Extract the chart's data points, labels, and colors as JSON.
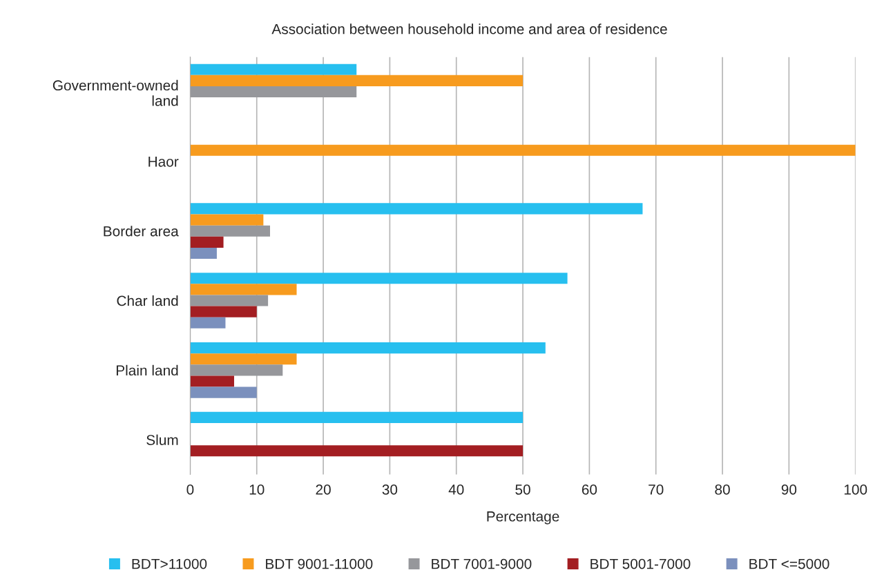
{
  "chart_data": {
    "type": "bar",
    "orientation": "horizontal",
    "title": "Association between household income and area of residence",
    "xlabel": "Percentage",
    "categories": [
      "Government-owned\nland",
      "Haor",
      "Border area",
      "Char land",
      "Plain land",
      "Slum"
    ],
    "series": [
      {
        "name": "BDT>11000",
        "color": "#27bfef",
        "values": [
          25,
          0,
          68,
          56.7,
          53.4,
          50
        ]
      },
      {
        "name": "BDT 9001-11000",
        "color": "#f79b1e",
        "values": [
          50,
          100,
          11,
          16,
          16,
          0
        ]
      },
      {
        "name": "BDT 7001-9000",
        "color": "#96979b",
        "values": [
          25,
          0,
          12,
          11.7,
          13.9,
          0
        ]
      },
      {
        "name": "BDT 5001-7000",
        "color": "#a31e22",
        "values": [
          0,
          0,
          5,
          10,
          6.6,
          50
        ]
      },
      {
        "name": "BDT <=5000",
        "color": "#7b90bd",
        "values": [
          0,
          0,
          4,
          5.3,
          10,
          0
        ]
      }
    ],
    "xlim": [
      0,
      100
    ],
    "xticks": [
      0,
      10,
      20,
      30,
      40,
      50,
      60,
      70,
      80,
      90,
      100
    ],
    "grid": "x",
    "legend": "bottom"
  }
}
